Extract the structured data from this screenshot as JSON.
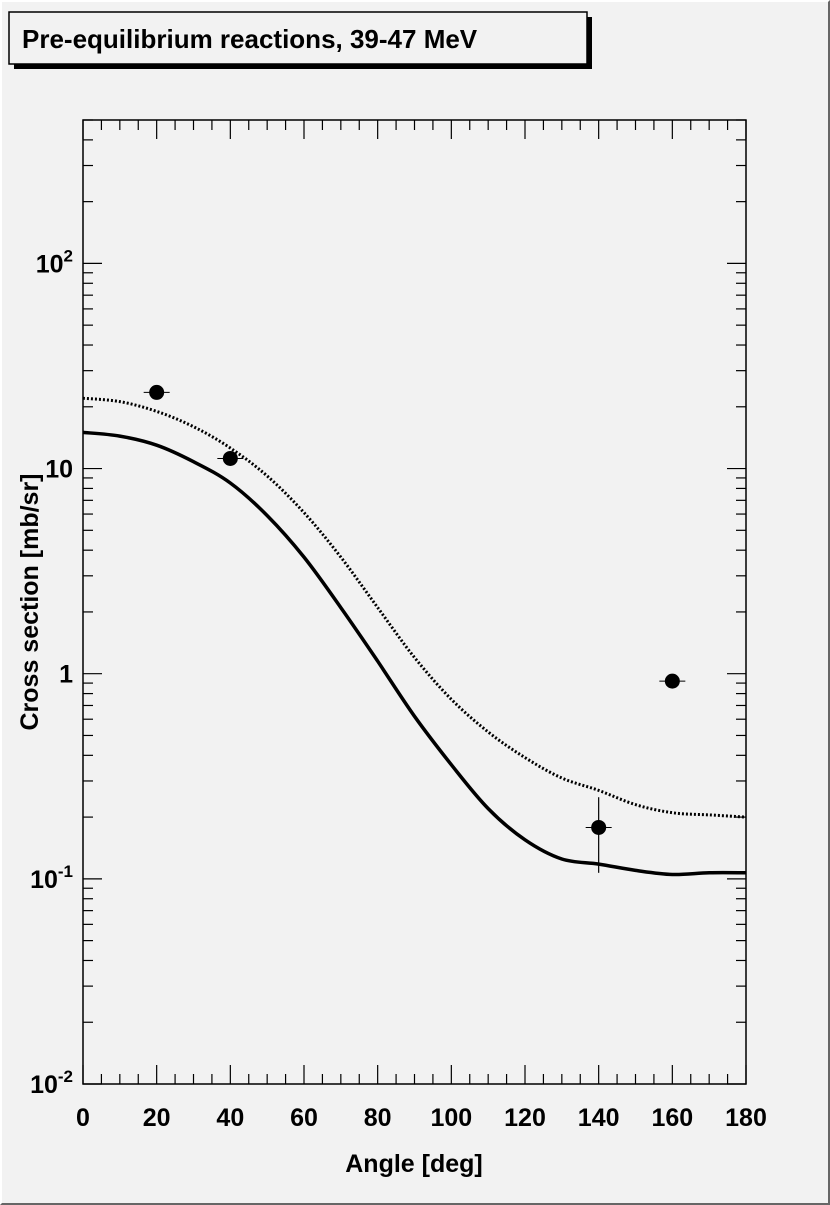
{
  "chart_data": {
    "type": "scatter",
    "title": "Pre-equilibrium reactions, 39-47 MeV",
    "xlabel": "Angle [deg]",
    "ylabel": "Cross section [mb/sr]",
    "xlim": [
      0,
      180
    ],
    "ylim": [
      0.01,
      500
    ],
    "y_scale": "log",
    "x_ticks": [
      0,
      20,
      40,
      60,
      80,
      100,
      120,
      140,
      160,
      180
    ],
    "x_tick_labels": [
      "0",
      "20",
      "40",
      "60",
      "80",
      "100",
      "120",
      "140",
      "160",
      "180"
    ],
    "y_ticks": [
      {
        "value": 0.01,
        "base": "10",
        "exp": "-2"
      },
      {
        "value": 0.1,
        "base": "10",
        "exp": "-1"
      },
      {
        "value": 1,
        "base": "1",
        "exp": ""
      },
      {
        "value": 10,
        "base": "10",
        "exp": ""
      },
      {
        "value": 100,
        "base": "10",
        "exp": "2"
      }
    ],
    "grid": false,
    "points": [
      {
        "x": 20,
        "y": 23.5,
        "yerr_low": 23.5,
        "yerr_high": 23.5
      },
      {
        "x": 40,
        "y": 11.2,
        "yerr_low": 11.2,
        "yerr_high": 11.2
      },
      {
        "x": 140,
        "y": 0.178,
        "yerr_low": 0.107,
        "yerr_high": 0.25
      },
      {
        "x": 160,
        "y": 0.92,
        "yerr_low": 0.92,
        "yerr_high": 0.92
      }
    ],
    "curves": [
      {
        "style": "dotted",
        "x": [
          0,
          10,
          20,
          30,
          40,
          50,
          60,
          70,
          80,
          90,
          100,
          110,
          120,
          130,
          140,
          150,
          160,
          170,
          180
        ],
        "y": [
          22,
          21.2,
          19,
          16,
          12.6,
          9.2,
          6.1,
          3.7,
          2.1,
          1.2,
          0.75,
          0.52,
          0.39,
          0.31,
          0.27,
          0.23,
          0.21,
          0.205,
          0.2
        ]
      },
      {
        "style": "solid",
        "x": [
          0,
          10,
          20,
          30,
          40,
          50,
          60,
          70,
          80,
          90,
          100,
          110,
          120,
          130,
          140,
          150,
          160,
          170,
          180
        ],
        "y": [
          15,
          14.4,
          13.0,
          10.8,
          8.5,
          5.9,
          3.7,
          2.1,
          1.15,
          0.62,
          0.36,
          0.22,
          0.155,
          0.125,
          0.118,
          0.11,
          0.105,
          0.107,
          0.107
        ]
      }
    ],
    "colors": {
      "background": "#f2f2f2",
      "ink": "#000000",
      "frame_shadow": "#666666"
    }
  }
}
